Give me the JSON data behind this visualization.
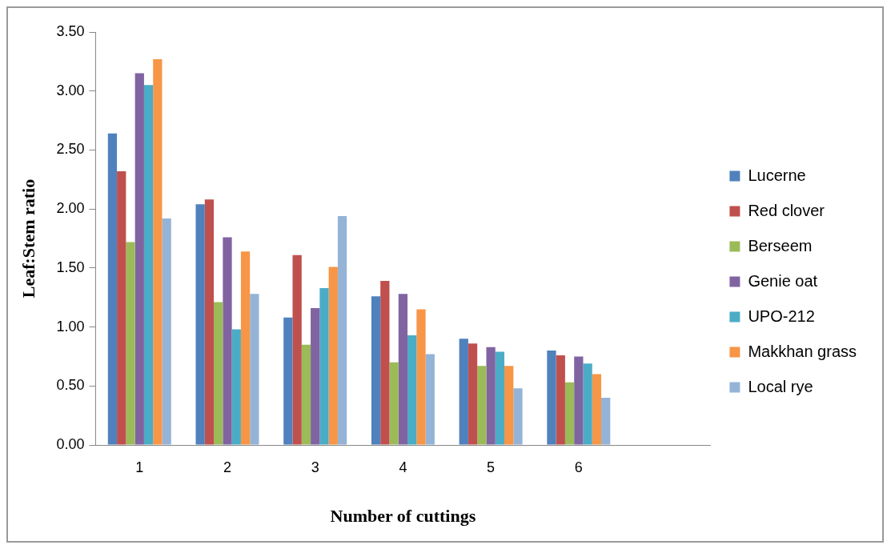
{
  "chart_data": {
    "type": "bar",
    "xlabel": "Number of cuttings",
    "ylabel": "Leaf:Stem ratio",
    "categories": [
      "1",
      "2",
      "3",
      "4",
      "5",
      "6",
      null
    ],
    "series": [
      {
        "name": "Lucerne",
        "color": "#4f81bd",
        "values": [
          2.64,
          2.04,
          1.08,
          1.26,
          0.9,
          0.8,
          null
        ]
      },
      {
        "name": "Red clover",
        "color": "#c0504d",
        "values": [
          2.32,
          2.08,
          1.61,
          1.39,
          0.86,
          0.76,
          null
        ]
      },
      {
        "name": "Berseem",
        "color": "#9bbb59",
        "values": [
          1.72,
          1.21,
          0.85,
          0.7,
          0.67,
          0.53,
          null
        ]
      },
      {
        "name": "Genie oat",
        "color": "#8064a2",
        "values": [
          3.15,
          1.76,
          1.16,
          1.28,
          0.83,
          0.75,
          null
        ]
      },
      {
        "name": "UPO-212",
        "color": "#4bacc6",
        "values": [
          3.05,
          0.98,
          1.33,
          0.93,
          0.79,
          0.69,
          null
        ]
      },
      {
        "name": "Makkhan grass",
        "color": "#f79646",
        "values": [
          3.27,
          1.64,
          1.51,
          1.15,
          0.67,
          0.6,
          null
        ]
      },
      {
        "name": "Local rye",
        "color": "#95b3d7",
        "values": [
          1.92,
          1.28,
          1.94,
          0.77,
          0.48,
          0.4,
          null
        ]
      }
    ],
    "ylim": [
      0,
      3.5
    ],
    "yticks": [
      {
        "value": 0,
        "label": "0.00"
      },
      {
        "value": 0.5,
        "label": "0.50"
      },
      {
        "value": 1,
        "label": "1.00"
      },
      {
        "value": 1.5,
        "label": "1.50"
      },
      {
        "value": 2,
        "label": "2.00"
      },
      {
        "value": 2.5,
        "label": "2.50"
      },
      {
        "value": 3,
        "label": "3.00"
      },
      {
        "value": 3.5,
        "label": "3.50"
      }
    ],
    "grid": false,
    "legend": "right"
  }
}
